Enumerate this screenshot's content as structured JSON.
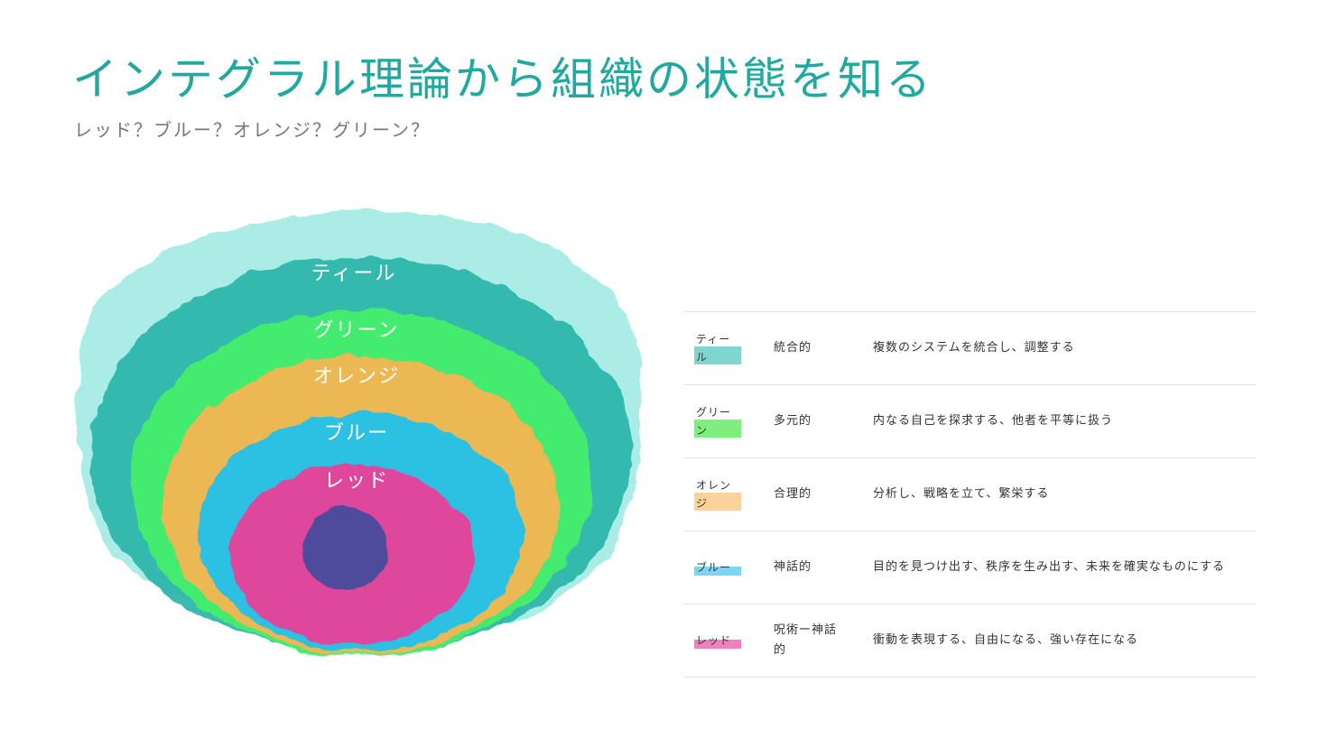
{
  "title": "インテグラル理論から組織の状態を知る",
  "subtitle": "レッド？ブルー？オレンジ？グリーン？",
  "diagram": {
    "rings": [
      {
        "label": "ティール",
        "color": "#2ab5ab"
      },
      {
        "label": "グリーン",
        "color": "#45f06a"
      },
      {
        "label": "オレンジ",
        "color": "#fbb451"
      },
      {
        "label": "ブルー",
        "color": "#1ec2f0"
      },
      {
        "label": "レッド",
        "color": "#ee3d97"
      }
    ],
    "outer_wash_color": "#8fe8de",
    "core_color": "#4f4b9c"
  },
  "legend": {
    "rows": [
      {
        "name": "ティール",
        "type": "統合的",
        "description": "複数のシステムを統合し、調整する",
        "color": "#7fd6d1"
      },
      {
        "name": "グリーン",
        "type": "多元的",
        "description": "内なる自己を探求する、他者を平等に扱う",
        "color": "#7fee7f"
      },
      {
        "name": "オレンジ",
        "type": "合理的",
        "description": "分析し、戦略を立て、繁栄する",
        "color": "#fbd39a"
      },
      {
        "name": "ブルー",
        "type": "神話的",
        "description": "目的を見つけ出す、秩序を生み出す、未来を確実なものにする",
        "color": "#7fd3f5"
      },
      {
        "name": "レッド",
        "type": "呪術ー神話的",
        "description": "衝動を表現する、自由になる、強い存在になる",
        "color": "#f07fbf"
      }
    ]
  }
}
